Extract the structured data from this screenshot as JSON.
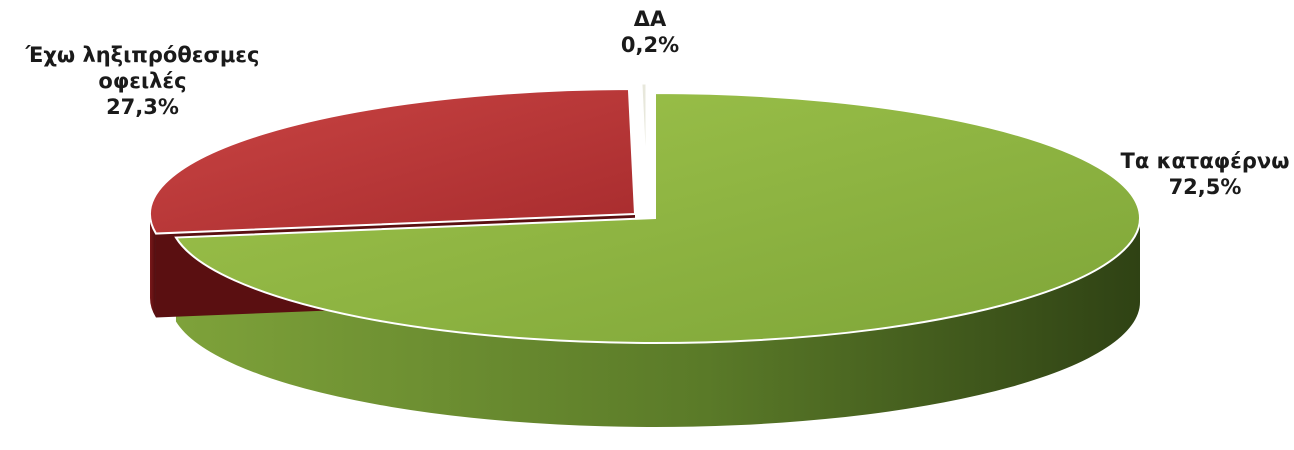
{
  "chart_data": {
    "type": "pie",
    "style": "3d",
    "slices": [
      {
        "label": "Τα καταφέρνω",
        "value": 72.5,
        "display": "72,5%",
        "color": "#8fb540",
        "side_color": "#4e6a22"
      },
      {
        "label": "Έχω ληξιπρόθεσμες οφειλές",
        "label_lines": [
          "Έχω ληξιπρόθεσμες",
          "οφειλές"
        ],
        "value": 27.3,
        "display": "27,3%",
        "color": "#c0393a",
        "side_color": "#6b1315"
      },
      {
        "label": "ΔΑ",
        "value": 0.2,
        "display": "0,2%",
        "color": "#e8e8dc",
        "side_color": "#b8b8a8"
      }
    ],
    "legend": "none"
  }
}
